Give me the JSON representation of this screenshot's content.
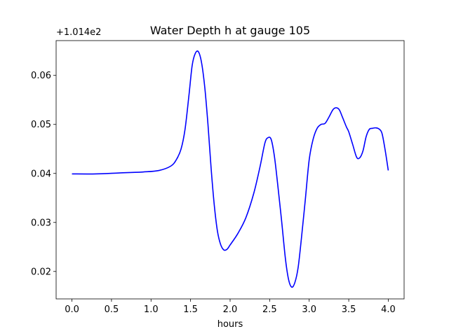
{
  "chart_data": {
    "type": "line",
    "title": "Water Depth h at gauge 105",
    "xlabel": "hours",
    "ylabel": "",
    "y_offset_text": "+1.014e2",
    "xlim": [
      -0.2,
      4.2
    ],
    "ylim": [
      0.0144,
      0.0671
    ],
    "xticks": [
      0.0,
      0.5,
      1.0,
      1.5,
      2.0,
      2.5,
      3.0,
      3.5,
      4.0
    ],
    "xtick_labels": [
      "0.0",
      "0.5",
      "1.0",
      "1.5",
      "2.0",
      "2.5",
      "3.0",
      "3.5",
      "4.0"
    ],
    "yticks": [
      0.02,
      0.03,
      0.04,
      0.05,
      0.06
    ],
    "ytick_labels": [
      "0.02",
      "0.03",
      "0.04",
      "0.05",
      "0.06"
    ],
    "grid": false,
    "series": [
      {
        "color": "#0000ff",
        "x": [
          0.0,
          0.3,
          0.6,
          0.9,
          1.1,
          1.25,
          1.32,
          1.38,
          1.43,
          1.48,
          1.52,
          1.56,
          1.6,
          1.64,
          1.68,
          1.72,
          1.76,
          1.8,
          1.84,
          1.88,
          1.92,
          1.96,
          2.0,
          2.1,
          2.2,
          2.3,
          2.38,
          2.44,
          2.48,
          2.52,
          2.56,
          2.6,
          2.65,
          2.7,
          2.74,
          2.78,
          2.82,
          2.86,
          2.9,
          2.95,
          3.0,
          3.05,
          3.1,
          3.15,
          3.2,
          3.25,
          3.3,
          3.34,
          3.38,
          3.42,
          3.47,
          3.5,
          3.55,
          3.6,
          3.64,
          3.68,
          3.72,
          3.76,
          3.8,
          3.84,
          3.88,
          3.92,
          3.96,
          4.0
        ],
        "y": [
          0.0399,
          0.0399,
          0.0401,
          0.0403,
          0.0406,
          0.0415,
          0.0428,
          0.045,
          0.049,
          0.056,
          0.062,
          0.0645,
          0.0648,
          0.0625,
          0.0575,
          0.05,
          0.041,
          0.0335,
          0.0282,
          0.0255,
          0.0244,
          0.0245,
          0.0254,
          0.0278,
          0.031,
          0.036,
          0.0415,
          0.0462,
          0.0473,
          0.0469,
          0.0435,
          0.038,
          0.0305,
          0.0225,
          0.0183,
          0.0168,
          0.0178,
          0.0208,
          0.0265,
          0.0345,
          0.0428,
          0.047,
          0.0492,
          0.05,
          0.0502,
          0.0515,
          0.053,
          0.0534,
          0.053,
          0.0515,
          0.0495,
          0.0485,
          0.0459,
          0.0433,
          0.0432,
          0.0446,
          0.0475,
          0.049,
          0.0492,
          0.0493,
          0.0491,
          0.0482,
          0.0448,
          0.0406
        ]
      }
    ]
  }
}
